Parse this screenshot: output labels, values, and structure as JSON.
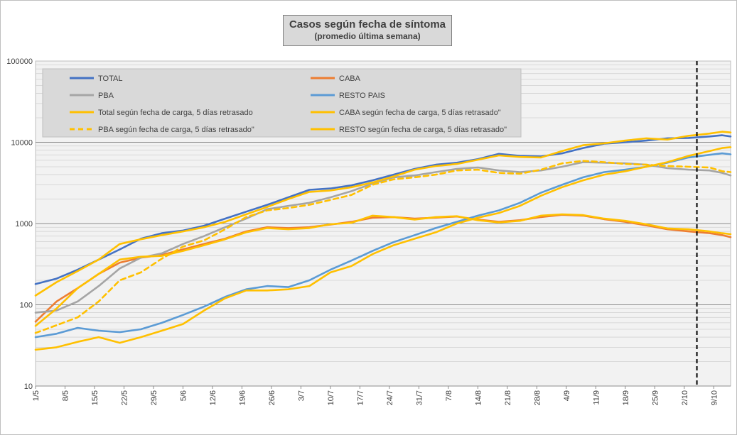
{
  "chart_data": {
    "type": "line",
    "title": "Casos según fecha de síntoma",
    "subtitle": "(promedio última semana)",
    "xlabel": "",
    "ylabel": "",
    "y_scale": "log",
    "ylim": [
      10,
      100000
    ],
    "y_ticks": [
      "10",
      "100",
      "1000",
      "10000",
      "100000"
    ],
    "x_tick_labels": [
      "1/5",
      "8/5",
      "15/5",
      "22/5",
      "29/5",
      "5/6",
      "12/6",
      "19/6",
      "26/6",
      "3/7",
      "10/7",
      "17/7",
      "24/7",
      "31/7",
      "7/8",
      "14/8",
      "21/8",
      "28/8",
      "4/9",
      "11/9",
      "18/9",
      "25/9",
      "2/10",
      "9/10"
    ],
    "x_unit": "day index from 1/5 (1/5 = 0)",
    "x_range": [
      0,
      165
    ],
    "grid": true,
    "legend_position": "top-left",
    "reference_line": {
      "x": 157,
      "style": "dashed",
      "color": "#000000"
    },
    "series": [
      {
        "name": "TOTAL",
        "color": "#4472c4",
        "dash": false,
        "points": [
          [
            0,
            180
          ],
          [
            5,
            210
          ],
          [
            10,
            270
          ],
          [
            15,
            360
          ],
          [
            20,
            480
          ],
          [
            25,
            650
          ],
          [
            30,
            760
          ],
          [
            35,
            820
          ],
          [
            40,
            940
          ],
          [
            45,
            1150
          ],
          [
            50,
            1400
          ],
          [
            55,
            1700
          ],
          [
            60,
            2100
          ],
          [
            65,
            2600
          ],
          [
            70,
            2700
          ],
          [
            75,
            2950
          ],
          [
            80,
            3400
          ],
          [
            85,
            4000
          ],
          [
            90,
            4700
          ],
          [
            95,
            5300
          ],
          [
            100,
            5600
          ],
          [
            105,
            6200
          ],
          [
            110,
            7200
          ],
          [
            115,
            6800
          ],
          [
            120,
            6700
          ],
          [
            125,
            7300
          ],
          [
            130,
            8500
          ],
          [
            135,
            9600
          ],
          [
            140,
            10000
          ],
          [
            145,
            10500
          ],
          [
            150,
            11200
          ],
          [
            155,
            11300
          ],
          [
            160,
            11800
          ],
          [
            163,
            12200
          ],
          [
            165,
            11800
          ]
        ]
      },
      {
        "name": "CABA",
        "color": "#ed7d31",
        "dash": false,
        "points": [
          [
            0,
            62
          ],
          [
            5,
            110
          ],
          [
            10,
            160
          ],
          [
            15,
            240
          ],
          [
            20,
            330
          ],
          [
            25,
            380
          ],
          [
            30,
            410
          ],
          [
            35,
            480
          ],
          [
            40,
            560
          ],
          [
            45,
            650
          ],
          [
            50,
            800
          ],
          [
            55,
            900
          ],
          [
            60,
            880
          ],
          [
            65,
            900
          ],
          [
            70,
            970
          ],
          [
            75,
            1050
          ],
          [
            80,
            1180
          ],
          [
            85,
            1200
          ],
          [
            90,
            1150
          ],
          [
            95,
            1180
          ],
          [
            100,
            1220
          ],
          [
            105,
            1120
          ],
          [
            110,
            1050
          ],
          [
            115,
            1100
          ],
          [
            120,
            1200
          ],
          [
            125,
            1280
          ],
          [
            130,
            1250
          ],
          [
            135,
            1130
          ],
          [
            140,
            1050
          ],
          [
            145,
            950
          ],
          [
            150,
            850
          ],
          [
            155,
            800
          ],
          [
            160,
            760
          ],
          [
            163,
            720
          ],
          [
            165,
            680
          ]
        ]
      },
      {
        "name": "PBA",
        "color": "#a5a5a5",
        "dash": false,
        "points": [
          [
            0,
            80
          ],
          [
            5,
            85
          ],
          [
            10,
            110
          ],
          [
            15,
            170
          ],
          [
            20,
            280
          ],
          [
            25,
            380
          ],
          [
            30,
            430
          ],
          [
            35,
            560
          ],
          [
            40,
            700
          ],
          [
            45,
            900
          ],
          [
            50,
            1150
          ],
          [
            55,
            1500
          ],
          [
            60,
            1650
          ],
          [
            65,
            1800
          ],
          [
            70,
            2100
          ],
          [
            75,
            2500
          ],
          [
            80,
            3100
          ],
          [
            85,
            3700
          ],
          [
            90,
            3900
          ],
          [
            95,
            4300
          ],
          [
            100,
            4700
          ],
          [
            105,
            4900
          ],
          [
            110,
            4500
          ],
          [
            115,
            4300
          ],
          [
            120,
            4500
          ],
          [
            125,
            5000
          ],
          [
            130,
            5700
          ],
          [
            135,
            5600
          ],
          [
            140,
            5500
          ],
          [
            145,
            5300
          ],
          [
            150,
            4800
          ],
          [
            155,
            4600
          ],
          [
            160,
            4500
          ],
          [
            163,
            4200
          ],
          [
            165,
            3900
          ]
        ]
      },
      {
        "name": "RESTO PAIS",
        "color": "#5b9bd5",
        "dash": false,
        "points": [
          [
            0,
            40
          ],
          [
            5,
            44
          ],
          [
            10,
            52
          ],
          [
            15,
            48
          ],
          [
            20,
            46
          ],
          [
            25,
            50
          ],
          [
            30,
            60
          ],
          [
            35,
            75
          ],
          [
            40,
            95
          ],
          [
            45,
            125
          ],
          [
            50,
            155
          ],
          [
            55,
            170
          ],
          [
            60,
            165
          ],
          [
            65,
            200
          ],
          [
            70,
            270
          ],
          [
            75,
            350
          ],
          [
            80,
            460
          ],
          [
            85,
            590
          ],
          [
            90,
            720
          ],
          [
            95,
            880
          ],
          [
            100,
            1050
          ],
          [
            105,
            1250
          ],
          [
            110,
            1450
          ],
          [
            115,
            1800
          ],
          [
            120,
            2400
          ],
          [
            125,
            3000
          ],
          [
            130,
            3700
          ],
          [
            135,
            4300
          ],
          [
            140,
            4600
          ],
          [
            145,
            5000
          ],
          [
            150,
            5600
          ],
          [
            155,
            6500
          ],
          [
            160,
            7000
          ],
          [
            163,
            7300
          ],
          [
            165,
            7100
          ]
        ]
      },
      {
        "name": "Total según fecha de carga, 5 días retrasado",
        "color": "#ffc000",
        "dash": false,
        "points": [
          [
            0,
            130
          ],
          [
            5,
            190
          ],
          [
            10,
            260
          ],
          [
            15,
            360
          ],
          [
            20,
            560
          ],
          [
            25,
            640
          ],
          [
            30,
            720
          ],
          [
            35,
            800
          ],
          [
            40,
            900
          ],
          [
            45,
            1050
          ],
          [
            50,
            1300
          ],
          [
            55,
            1600
          ],
          [
            60,
            2000
          ],
          [
            65,
            2450
          ],
          [
            70,
            2550
          ],
          [
            75,
            2800
          ],
          [
            80,
            3200
          ],
          [
            85,
            3800
          ],
          [
            90,
            4600
          ],
          [
            95,
            5100
          ],
          [
            100,
            5400
          ],
          [
            105,
            6100
          ],
          [
            110,
            6900
          ],
          [
            115,
            6600
          ],
          [
            120,
            6500
          ],
          [
            125,
            7800
          ],
          [
            130,
            9200
          ],
          [
            135,
            9700
          ],
          [
            140,
            10500
          ],
          [
            145,
            11200
          ],
          [
            150,
            10800
          ],
          [
            155,
            12000
          ],
          [
            160,
            12800
          ],
          [
            163,
            13500
          ],
          [
            165,
            13200
          ]
        ]
      },
      {
        "name": "CABA según fecha de carga, 5 días retrasado\"",
        "color": "#ffc000",
        "dash": false,
        "points": [
          [
            0,
            55
          ],
          [
            5,
            90
          ],
          [
            10,
            160
          ],
          [
            15,
            240
          ],
          [
            20,
            360
          ],
          [
            25,
            390
          ],
          [
            30,
            400
          ],
          [
            35,
            460
          ],
          [
            40,
            540
          ],
          [
            45,
            640
          ],
          [
            50,
            780
          ],
          [
            55,
            880
          ],
          [
            60,
            850
          ],
          [
            65,
            880
          ],
          [
            70,
            980
          ],
          [
            75,
            1020
          ],
          [
            80,
            1250
          ],
          [
            85,
            1200
          ],
          [
            90,
            1120
          ],
          [
            95,
            1200
          ],
          [
            100,
            1230
          ],
          [
            105,
            1100
          ],
          [
            110,
            1030
          ],
          [
            115,
            1080
          ],
          [
            120,
            1250
          ],
          [
            125,
            1300
          ],
          [
            130,
            1270
          ],
          [
            135,
            1150
          ],
          [
            140,
            1080
          ],
          [
            145,
            980
          ],
          [
            150,
            870
          ],
          [
            155,
            850
          ],
          [
            160,
            800
          ],
          [
            163,
            760
          ],
          [
            165,
            740
          ]
        ]
      },
      {
        "name": "PBA según fecha de carga, 5 días retrasado\"",
        "color": "#ffc000",
        "dash": true,
        "points": [
          [
            0,
            45
          ],
          [
            5,
            56
          ],
          [
            10,
            70
          ],
          [
            15,
            110
          ],
          [
            20,
            200
          ],
          [
            25,
            250
          ],
          [
            30,
            370
          ],
          [
            35,
            520
          ],
          [
            40,
            620
          ],
          [
            45,
            850
          ],
          [
            50,
            1200
          ],
          [
            55,
            1450
          ],
          [
            60,
            1550
          ],
          [
            65,
            1700
          ],
          [
            70,
            1950
          ],
          [
            75,
            2250
          ],
          [
            80,
            3000
          ],
          [
            85,
            3500
          ],
          [
            90,
            3700
          ],
          [
            95,
            4000
          ],
          [
            100,
            4500
          ],
          [
            105,
            4600
          ],
          [
            110,
            4200
          ],
          [
            115,
            4100
          ],
          [
            120,
            4600
          ],
          [
            125,
            5500
          ],
          [
            130,
            5900
          ],
          [
            135,
            5700
          ],
          [
            140,
            5400
          ],
          [
            145,
            5300
          ],
          [
            150,
            5100
          ],
          [
            155,
            5000
          ],
          [
            160,
            4900
          ],
          [
            163,
            4400
          ],
          [
            165,
            4300
          ]
        ]
      },
      {
        "name": "RESTO según fecha de carga, 5 días retrasado\"",
        "color": "#ffc000",
        "dash": false,
        "points": [
          [
            0,
            28
          ],
          [
            5,
            30
          ],
          [
            10,
            35
          ],
          [
            15,
            40
          ],
          [
            20,
            34
          ],
          [
            25,
            40
          ],
          [
            30,
            48
          ],
          [
            35,
            58
          ],
          [
            40,
            85
          ],
          [
            45,
            120
          ],
          [
            50,
            150
          ],
          [
            55,
            150
          ],
          [
            60,
            155
          ],
          [
            65,
            170
          ],
          [
            70,
            250
          ],
          [
            75,
            300
          ],
          [
            80,
            420
          ],
          [
            85,
            540
          ],
          [
            90,
            650
          ],
          [
            95,
            780
          ],
          [
            100,
            1000
          ],
          [
            105,
            1180
          ],
          [
            110,
            1350
          ],
          [
            115,
            1650
          ],
          [
            120,
            2200
          ],
          [
            125,
            2800
          ],
          [
            130,
            3400
          ],
          [
            135,
            4000
          ],
          [
            140,
            4400
          ],
          [
            145,
            5000
          ],
          [
            150,
            5700
          ],
          [
            155,
            6800
          ],
          [
            160,
            7800
          ],
          [
            163,
            8500
          ],
          [
            165,
            8700
          ]
        ]
      }
    ]
  }
}
